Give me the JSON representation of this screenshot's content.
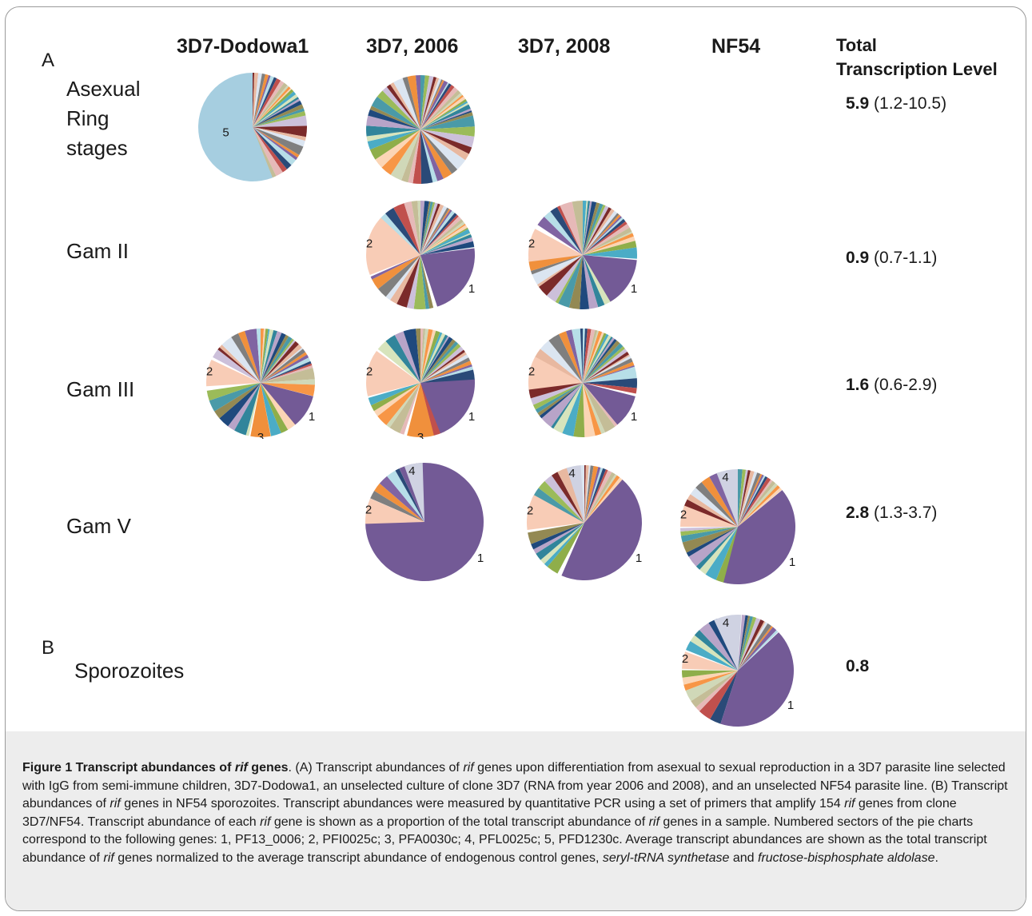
{
  "panels": {
    "A": "A",
    "B": "B"
  },
  "columns": [
    "3D7-Dodowa1",
    "3D7, 2006",
    "3D7, 2008",
    "NF54"
  ],
  "total_header": [
    "Total",
    "Transcription Level"
  ],
  "rows": [
    {
      "label_lines": [
        "Asexual",
        "Ring",
        "stages"
      ],
      "total_value": "5.9",
      "total_range": "(1.2-10.5)"
    },
    {
      "label_lines": [
        "Gam II"
      ],
      "total_value": "0.9",
      "total_range": "(0.7-1.1)"
    },
    {
      "label_lines": [
        "Gam III"
      ],
      "total_value": "1.6",
      "total_range": "(0.6-2.9)"
    },
    {
      "label_lines": [
        "Gam V"
      ],
      "total_value": "2.8",
      "total_range": "(1.3-3.7)"
    },
    {
      "label_lines": [
        "Sporozoites"
      ],
      "total_value": "0.8",
      "total_range": ""
    }
  ],
  "gene_colors": {
    "1": "#735a96",
    "2": "#f8ccb6",
    "3": "#f0903c",
    "4": "#cfd2e2",
    "5": "#a6cee0"
  },
  "background_palette": [
    "#7b2a2a",
    "#2a4a78",
    "#8fae4a",
    "#4a9aa8",
    "#f0903c",
    "#d0d8b8",
    "#b8a4c8",
    "#e8b8a0",
    "#c0504d",
    "#4bacc6",
    "#9bbb59",
    "#8064a2",
    "#f79646",
    "#1f497d",
    "#dbe5f1",
    "#e6b9b8",
    "#d7e4bc",
    "#ccc0da",
    "#b7dee8",
    "#fbd5b5",
    "#938953",
    "#7f7f7f",
    "#c4bd97",
    "#31859b"
  ],
  "chart_data": [
    {
      "type": "pie",
      "title": "Asexual Ring stages, 3D7-Dodowa1",
      "labeled_slices": [
        {
          "label": "5",
          "gene": "PFD1230c",
          "value": 0.56
        }
      ],
      "other_value": 0.44
    },
    {
      "type": "pie",
      "title": "Asexual Ring stages, 3D7, 2006",
      "labeled_slices": [],
      "other_value": 1.0
    },
    {
      "type": "pie",
      "title": "Gam II, 3D7, 2006",
      "labeled_slices": [
        {
          "label": "1",
          "gene": "PF13_0006",
          "value": 0.22
        },
        {
          "label": "2",
          "gene": "PFI0025c",
          "value": 0.18
        }
      ],
      "other_value": 0.6
    },
    {
      "type": "pie",
      "title": "Gam II, 3D7, 2008",
      "labeled_slices": [
        {
          "label": "1",
          "gene": "PF13_0006",
          "value": 0.15
        },
        {
          "label": "2",
          "gene": "PFI0025c",
          "value": 0.1
        }
      ],
      "other_value": 0.75
    },
    {
      "type": "pie",
      "title": "Gam III, 3D7-Dodowa1",
      "labeled_slices": [
        {
          "label": "1",
          "gene": "PF13_0006",
          "value": 0.1
        },
        {
          "label": "2",
          "gene": "PFI0025c",
          "value": 0.08
        },
        {
          "label": "3",
          "gene": "PFA0030c",
          "value": 0.06
        }
      ],
      "other_value": 0.76
    },
    {
      "type": "pie",
      "title": "Gam III, 3D7, 2006",
      "labeled_slices": [
        {
          "label": "1",
          "gene": "PF13_0006",
          "value": 0.2
        },
        {
          "label": "2",
          "gene": "PFI0025c",
          "value": 0.14
        },
        {
          "label": "3",
          "gene": "PFA0030c",
          "value": 0.08
        }
      ],
      "other_value": 0.58
    },
    {
      "type": "pie",
      "title": "Gam III, 3D7, 2008",
      "labeled_slices": [
        {
          "label": "1",
          "gene": "PF13_0006",
          "value": 0.1
        },
        {
          "label": "2",
          "gene": "PFI0025c",
          "value": 0.1
        }
      ],
      "other_value": 0.8
    },
    {
      "type": "pie",
      "title": "Gam V, 3D7, 2006",
      "labeled_slices": [
        {
          "label": "1",
          "gene": "PF13_0006",
          "value": 0.82
        },
        {
          "label": "2",
          "gene": "PFI0025c",
          "value": 0.07
        },
        {
          "label": "4",
          "gene": "PFL0025c",
          "value": 0.05
        }
      ],
      "other_value": 0.06
    },
    {
      "type": "pie",
      "title": "Gam V, 3D7, 2008",
      "labeled_slices": [
        {
          "label": "1",
          "gene": "PF13_0006",
          "value": 0.45
        },
        {
          "label": "2",
          "gene": "PFI0025c",
          "value": 0.1
        },
        {
          "label": "4",
          "gene": "PFL0025c",
          "value": 0.04
        }
      ],
      "other_value": 0.41
    },
    {
      "type": "pie",
      "title": "Gam V, NF54",
      "labeled_slices": [
        {
          "label": "1",
          "gene": "PF13_0006",
          "value": 0.4
        },
        {
          "label": "2",
          "gene": "PFI0025c",
          "value": 0.06
        },
        {
          "label": "4",
          "gene": "PFL0025c",
          "value": 0.06
        }
      ],
      "other_value": 0.48
    },
    {
      "type": "pie",
      "title": "Sporozoites, NF54",
      "labeled_slices": [
        {
          "label": "1",
          "gene": "PF13_0006",
          "value": 0.42
        },
        {
          "label": "2",
          "gene": "PFI0025c",
          "value": 0.05
        },
        {
          "label": "4",
          "gene": "PFL0025c",
          "value": 0.08
        }
      ],
      "other_value": 0.45
    }
  ],
  "caption": {
    "figure_label": "Figure 1",
    "title_1": " Transcript abundances of ",
    "title_rif": "rif",
    "title_2": " genes",
    "p1": ". (A) Transcript abundances of ",
    "p2": " genes upon differentiation from asexual to sexual reproduction in a 3D7 parasite line selected with IgG from semi-immune children, 3D7-Dodowa1, an unselected culture of clone 3D7 (RNA from year 2006 and 2008), and an unselected NF54 parasite line. (B) Transcript abundances of ",
    "p3": " genes in NF54 sporozoites. Transcript abundances were measured by quantitative PCR using a set of primers that amplify 154 ",
    "p4": " genes from clone 3D7/NF54. Transcript abundance of each ",
    "p5": " gene is shown as a proportion of the total transcript abundance of ",
    "p6": " genes in a sample. Numbered sectors of the pie charts correspond to the following genes: 1, PF13_0006; 2, PFI0025c; 3, PFA0030c; 4, PFL0025c; 5, PFD1230c. Average transcript abundances are shown as the total transcript abundance of ",
    "p7": " genes normalized to the average transcript abundance of endogenous control genes, ",
    "enzyme_1": "seryl-tRNA synthetase",
    "p8": " and ",
    "enzyme_2": "fructose-bisphosphate aldolase",
    "p9": ".",
    "rif": "rif"
  }
}
